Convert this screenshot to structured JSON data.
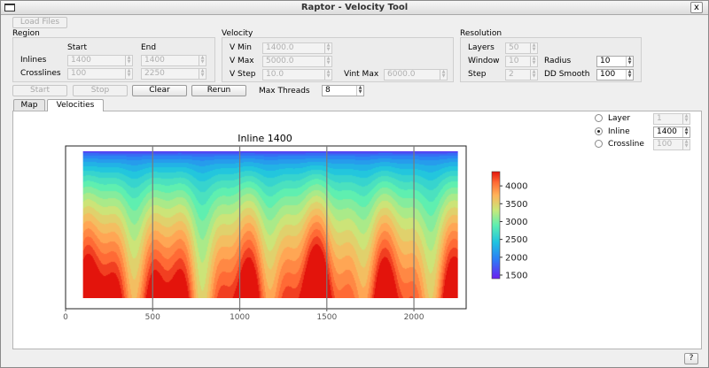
{
  "window": {
    "title": "Raptor - Velocity Tool",
    "close_glyph": "x"
  },
  "toolbar": {
    "load_files": "Load Files"
  },
  "region": {
    "title": "Region",
    "start_header": "Start",
    "end_header": "End",
    "inlines_label": "Inlines",
    "crosslines_label": "Crosslines",
    "inlines_start": "1400",
    "inlines_end": "1400",
    "crosslines_start": "100",
    "crosslines_end": "2250"
  },
  "velocity": {
    "title": "Velocity",
    "vmin_label": "V Min",
    "vmin": "1400.0",
    "vmax_label": "V Max",
    "vmax": "5000.0",
    "vstep_label": "V Step",
    "vstep": "10.0",
    "vintmax_label": "Vint Max",
    "vintmax": "6000.0"
  },
  "resolution": {
    "title": "Resolution",
    "layers_label": "Layers",
    "layers": "50",
    "window_label": "Window",
    "window": "10",
    "step_label": "Step",
    "step": "2",
    "radius_label": "Radius",
    "radius": "10",
    "ddsmooth_label": "DD Smooth",
    "ddsmooth": "100"
  },
  "actions": {
    "start": "Start",
    "stop": "Stop",
    "clear": "Clear",
    "rerun": "Rerun",
    "max_threads_label": "Max Threads",
    "max_threads": "8"
  },
  "tabs": [
    {
      "label": "Map"
    },
    {
      "label": "Velocities"
    }
  ],
  "view": {
    "layer_label": "Layer",
    "layer_value": "1",
    "inline_label": "Inline",
    "inline_value": "1400",
    "crossline_label": "Crossline",
    "crossline_value": "100",
    "selected": "inline"
  },
  "help": {
    "label": "?"
  },
  "colors": {
    "accent_red": "#dd1a12",
    "accent_blue": "#5a28e6"
  },
  "chart_data": {
    "type": "heatmap",
    "title": "Inline 1400",
    "xlabel": "",
    "ylabel": "",
    "x_ticks": [
      0,
      500,
      1000,
      1500,
      2000
    ],
    "xlim": [
      0,
      2300
    ],
    "x_extent": [
      100,
      2250
    ],
    "vertical_lines_x": [
      500,
      1000,
      1500,
      2000
    ],
    "colorbar": {
      "min": 1400,
      "max": 4400,
      "ticks": [
        1500,
        2000,
        2500,
        3000,
        3500,
        4000
      ],
      "colormap": "rainbow"
    }
  }
}
